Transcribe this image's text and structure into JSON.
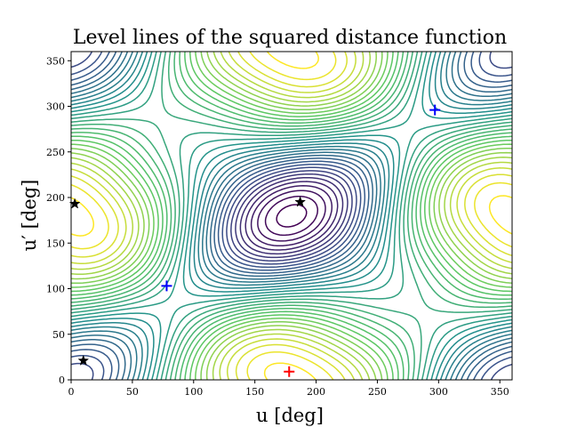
{
  "chart_data": {
    "type": "contour",
    "title": "Level lines of the squared distance function",
    "xlabel": "u [deg]",
    "ylabel": "u′ [deg]",
    "xlim": [
      0,
      360
    ],
    "ylim": [
      0,
      360
    ],
    "xticks": [
      0,
      50,
      100,
      150,
      200,
      250,
      300,
      350
    ],
    "yticks": [
      0,
      50,
      100,
      150,
      200,
      250,
      300,
      350
    ],
    "colormap": "viridis",
    "colormap_stops": [
      "#440154",
      "#3b528b",
      "#21918c",
      "#5ec962",
      "#fde725"
    ],
    "grid": false,
    "minima": [
      {
        "u": 78,
        "u_prime": 103,
        "marker": "plus",
        "color": "#0000ff"
      },
      {
        "u": 297,
        "u_prime": 296,
        "marker": "plus",
        "color": "#0000ff"
      }
    ],
    "global_minimum": {
      "u": 178,
      "u_prime": 9,
      "marker": "plus",
      "color": "#ff0000"
    },
    "saddles": [
      {
        "u": 3,
        "u_prime": 193,
        "marker": "star",
        "color": "#000000"
      },
      {
        "u": 187,
        "u_prime": 195,
        "marker": "star",
        "color": "#000000"
      },
      {
        "u": 10,
        "u_prime": 21,
        "marker": "star",
        "color": "#000000"
      }
    ]
  }
}
